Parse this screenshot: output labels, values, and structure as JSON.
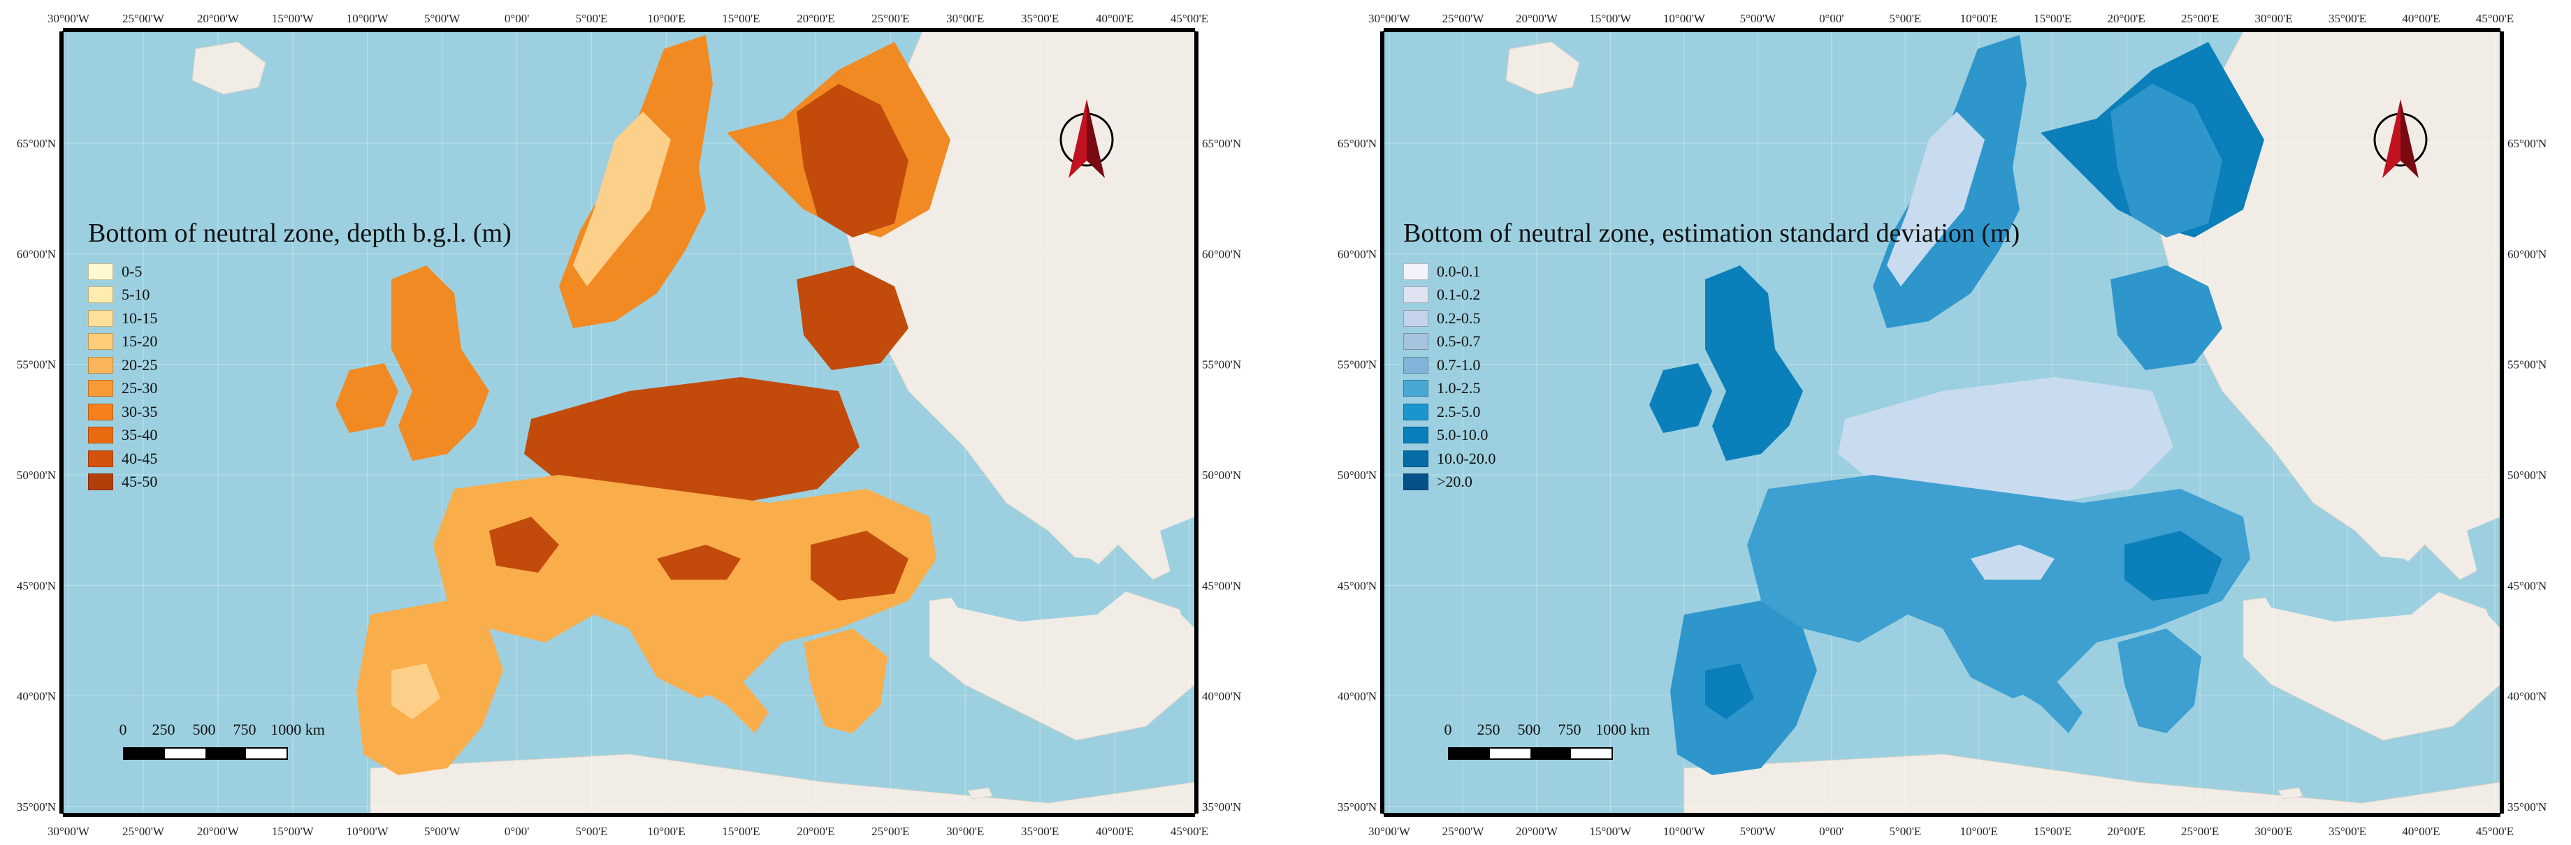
{
  "axes": {
    "top_ticks": [
      "30°00'W",
      "25°00'W",
      "20°00'W",
      "15°00'W",
      "10°00'W",
      "5°00'W",
      "0°00'",
      "5°00'E",
      "10°00'E",
      "15°00'E",
      "20°00'E",
      "25°00'E",
      "30°00'E",
      "35°00'E",
      "40°00'E",
      "45°00'E"
    ],
    "left_ticks": [
      "65°00'N",
      "60°00'N",
      "55°00'N",
      "50°00'N",
      "45°00'N",
      "40°00'N",
      "35°00'N"
    ]
  },
  "panels": [
    {
      "id": "depth",
      "legend_title": "Bottom of neutral zone, depth b.g.l. (m)",
      "legend": [
        {
          "label": "0-5",
          "color": "#fff9d2"
        },
        {
          "label": "5-10",
          "color": "#ffedb0"
        },
        {
          "label": "10-15",
          "color": "#fee09a"
        },
        {
          "label": "15-20",
          "color": "#fdcd78"
        },
        {
          "label": "20-25",
          "color": "#fbb55a"
        },
        {
          "label": "25-30",
          "color": "#f99a35"
        },
        {
          "label": "30-35",
          "color": "#f5801c"
        },
        {
          "label": "35-40",
          "color": "#ea6a0f"
        },
        {
          "label": "40-45",
          "color": "#d4520c"
        },
        {
          "label": "45-50",
          "color": "#b23e09"
        }
      ],
      "land_colors": {
        "main": "#f9ad4b",
        "dark": "#c24b0b",
        "mid": "#f28a23",
        "light": "#fdd08a"
      }
    },
    {
      "id": "stddev",
      "legend_title": "Bottom of neutral zone, estimation standard deviation (m)",
      "legend": [
        {
          "label": "0.0-0.1",
          "color": "#f3f3fb"
        },
        {
          "label": "0.1-0.2",
          "color": "#dfe3f2"
        },
        {
          "label": "0.2-0.5",
          "color": "#c5d3ea"
        },
        {
          "label": "0.5-0.7",
          "color": "#a7c3e0"
        },
        {
          "label": "0.7-1.0",
          "color": "#82b4d9"
        },
        {
          "label": "1.0-2.5",
          "color": "#4aa6d3"
        },
        {
          "label": "2.5-5.0",
          "color": "#1b95cb"
        },
        {
          "label": "5.0-10.0",
          "color": "#0a7fbb"
        },
        {
          "label": "10.0-20.0",
          "color": "#066ca6"
        },
        {
          "label": ">20.0",
          "color": "#045289"
        }
      ],
      "land_colors": {
        "main": "#3ea0d1",
        "dark": "#0b7fba",
        "mid": "#2f96cc",
        "light": "#c9dcef"
      }
    }
  ],
  "scale_bar": {
    "labels": [
      "0",
      "250",
      "500",
      "750",
      "1000 km"
    ]
  },
  "colors": {
    "sea": "#9cd0e0",
    "basemap_land": "#f1ede6",
    "north_arrow": "#c1121f"
  },
  "icons": {
    "north_arrow": "north-arrow-icon"
  }
}
